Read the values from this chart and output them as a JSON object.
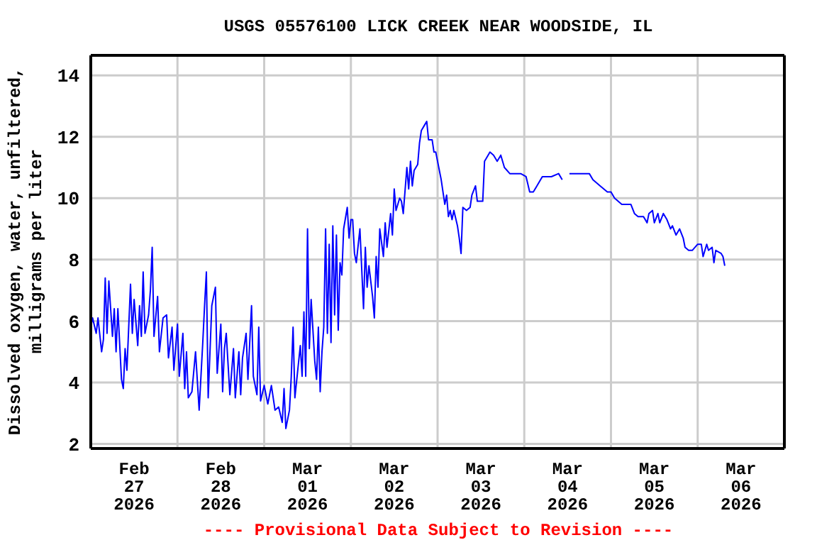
{
  "chart_data": {
    "type": "line",
    "title": "USGS 05576100 LICK CREEK NEAR WOODSIDE, IL",
    "ylabel": "Dissolved oxygen, water, unfiltered,\nmilligrams per liter",
    "annotations": [
      "---- Provisional Data Subject to Revision ----"
    ],
    "xlim": [
      "2026-02-26T12:00",
      "2026-03-06T12:00"
    ],
    "xticks": [
      {
        "value": "2026-02-27T00:00",
        "label": "Feb\n27\n2026"
      },
      {
        "value": "2026-02-27T12:00",
        "label": null
      },
      {
        "value": "2026-02-28T00:00",
        "label": "Feb\n28\n2026"
      },
      {
        "value": "2026-02-28T12:00",
        "label": null
      },
      {
        "value": "2026-03-01T00:00",
        "label": "Mar\n01\n2026"
      },
      {
        "value": "2026-03-01T12:00",
        "label": null
      },
      {
        "value": "2026-03-02T00:00",
        "label": "Mar\n02\n2026"
      },
      {
        "value": "2026-03-02T12:00",
        "label": null
      },
      {
        "value": "2026-03-03T00:00",
        "label": "Mar\n03\n2026"
      },
      {
        "value": "2026-03-03T12:00",
        "label": null
      },
      {
        "value": "2026-03-04T00:00",
        "label": "Mar\n04\n2026"
      },
      {
        "value": "2026-03-04T12:00",
        "label": null
      },
      {
        "value": "2026-03-05T00:00",
        "label": "Mar\n05\n2026"
      },
      {
        "value": "2026-03-05T12:00",
        "label": null
      },
      {
        "value": "2026-03-06T00:00",
        "label": "Mar\n06\n2026"
      }
    ],
    "ylim": [
      1.85,
      14.65
    ],
    "yticks": [
      2,
      4,
      6,
      8,
      10,
      12,
      14
    ],
    "grid": true,
    "marker": "none",
    "line_style": "solid",
    "series": [
      {
        "color": "#0000ff",
        "x": [
          "2026-02-26T12:00",
          "2026-02-26T12:30",
          "2026-02-26T13:30",
          "2026-02-26T14:00",
          "2026-02-26T15:00",
          "2026-02-26T15:30",
          "2026-02-26T16:00",
          "2026-02-26T16:30",
          "2026-02-26T17:00",
          "2026-02-26T18:00",
          "2026-02-26T18:30",
          "2026-02-26T19:00",
          "2026-02-26T19:30",
          "2026-02-26T20:30",
          "2026-02-26T21:00",
          "2026-02-26T21:30",
          "2026-02-26T22:00",
          "2026-02-26T23:00",
          "2026-02-26T23:30",
          "2026-02-27T00:00",
          "2026-02-27T01:00",
          "2026-02-27T01:30",
          "2026-02-27T02:00",
          "2026-02-27T02:30",
          "2026-02-27T03:00",
          "2026-02-27T04:00",
          "2026-02-27T04:30",
          "2026-02-27T05:00",
          "2026-02-27T05:30",
          "2026-02-27T06:30",
          "2026-02-27T07:00",
          "2026-02-27T08:00",
          "2026-02-27T09:00",
          "2026-02-27T09:30",
          "2026-02-27T10:30",
          "2026-02-27T11:00",
          "2026-02-27T12:00",
          "2026-02-27T12:30",
          "2026-02-27T13:30",
          "2026-02-27T14:00",
          "2026-02-27T14:30",
          "2026-02-27T15:00",
          "2026-02-27T16:00",
          "2026-02-27T17:00",
          "2026-02-27T18:00",
          "2026-02-27T19:00",
          "2026-02-27T19:30",
          "2026-02-27T20:00",
          "2026-02-27T20:30",
          "2026-02-27T21:30",
          "2026-02-27T22:30",
          "2026-02-27T23:00",
          "2026-02-28T00:00",
          "2026-02-28T00:30",
          "2026-02-28T01:00",
          "2026-02-28T01:30",
          "2026-02-28T02:30",
          "2026-02-28T03:30",
          "2026-02-28T04:00",
          "2026-02-28T05:00",
          "2026-02-28T05:30",
          "2026-02-28T06:00",
          "2026-02-28T07:00",
          "2026-02-28T07:30",
          "2026-02-28T08:30",
          "2026-02-28T09:00",
          "2026-02-28T10:00",
          "2026-02-28T10:30",
          "2026-02-28T11:00",
          "2026-02-28T12:00",
          "2026-02-28T13:00",
          "2026-02-28T14:00",
          "2026-02-28T15:00",
          "2026-02-28T16:00",
          "2026-02-28T17:00",
          "2026-02-28T17:30",
          "2026-02-28T18:00",
          "2026-02-28T19:00",
          "2026-02-28T19:30",
          "2026-02-28T20:00",
          "2026-02-28T20:30",
          "2026-02-28T22:00",
          "2026-02-28T22:30",
          "2026-02-28T23:00",
          "2026-02-28T23:30",
          "2026-03-01T00:00",
          "2026-03-01T00:30",
          "2026-03-01T01:00",
          "2026-03-01T02:00",
          "2026-03-01T02:30",
          "2026-03-01T03:00",
          "2026-03-01T03:30",
          "2026-03-01T04:00",
          "2026-03-01T04:30",
          "2026-03-01T05:00",
          "2026-03-01T05:30",
          "2026-03-01T06:00",
          "2026-03-01T06:30",
          "2026-03-01T07:00",
          "2026-03-01T07:30",
          "2026-03-01T08:00",
          "2026-03-01T08:30",
          "2026-03-01T09:00",
          "2026-03-01T09:30",
          "2026-03-01T10:00",
          "2026-03-01T11:00",
          "2026-03-01T11:30",
          "2026-03-01T12:00",
          "2026-03-01T12:30",
          "2026-03-01T13:00",
          "2026-03-01T13:30",
          "2026-03-01T14:30",
          "2026-03-01T15:30",
          "2026-03-01T16:00",
          "2026-03-01T16:30",
          "2026-03-01T17:00",
          "2026-03-01T18:00",
          "2026-03-01T18:30",
          "2026-03-01T19:00",
          "2026-03-01T19:30",
          "2026-03-01T20:00",
          "2026-03-01T21:00",
          "2026-03-01T21:30",
          "2026-03-01T22:00",
          "2026-03-01T23:00",
          "2026-03-01T23:30",
          "2026-03-02T00:00",
          "2026-03-02T00:30",
          "2026-03-02T01:30",
          "2026-03-02T02:00",
          "2026-03-02T02:30",
          "2026-03-02T03:30",
          "2026-03-02T04:00",
          "2026-03-02T04:30",
          "2026-03-02T05:00",
          "2026-03-02T05:30",
          "2026-03-02T06:30",
          "2026-03-02T07:00",
          "2026-03-02T07:30",
          "2026-03-02T08:30",
          "2026-03-02T09:00",
          "2026-03-02T09:30",
          "2026-03-02T10:30",
          "2026-03-02T11:00",
          "2026-03-02T11:30",
          "2026-03-02T12:00",
          "2026-03-02T13:00",
          "2026-03-02T13:30",
          "2026-03-02T14:00",
          "2026-03-02T14:30",
          "2026-03-02T15:00",
          "2026-03-02T15:30",
          "2026-03-02T16:00",
          "2026-03-02T16:30",
          "2026-03-02T17:30",
          "2026-03-02T18:00",
          "2026-03-02T18:30",
          "2026-03-02T19:00",
          "2026-03-02T20:00",
          "2026-03-02T21:00",
          "2026-03-02T21:30",
          "2026-03-02T22:30",
          "2026-03-02T23:00",
          "2026-03-03T00:00",
          "2026-03-03T00:30",
          "2026-03-03T01:00",
          "2026-03-03T01:30",
          "2026-03-03T02:30",
          "2026-03-03T03:30",
          "2026-03-03T04:30",
          "2026-03-03T05:30",
          "2026-03-03T06:30",
          "2026-03-03T08:00",
          "2026-03-03T09:00",
          "2026-03-03T11:00",
          "2026-03-03T12:30",
          "2026-03-03T13:30",
          "2026-03-03T14:30",
          "2026-03-03T15:30",
          "2026-03-03T17:00",
          "2026-03-03T19:30",
          "2026-03-03T21:30",
          "2026-03-03T22:30",
          "2026-03-03T23:30",
          "2026-03-04T00:30",
          "2026-03-04T02:00",
          "2026-03-04T06:00",
          "2026-03-04T07:00",
          "2026-03-04T09:00",
          "2026-03-04T11:00",
          "2026-03-04T12:00",
          "2026-03-04T13:00",
          "2026-03-04T15:00",
          "2026-03-04T17:30",
          "2026-03-04T18:30",
          "2026-03-04T19:30",
          "2026-03-04T21:00",
          "2026-03-04T22:00",
          "2026-03-04T22:30",
          "2026-03-04T23:30",
          "2026-03-05T00:00",
          "2026-03-05T01:00",
          "2026-03-05T01:30",
          "2026-03-05T02:30",
          "2026-03-05T03:30",
          "2026-03-05T04:30",
          "2026-03-05T05:00",
          "2026-03-05T06:00",
          "2026-03-05T07:00",
          "2026-03-05T08:00",
          "2026-03-05T08:30",
          "2026-03-05T09:30",
          "2026-03-05T10:30",
          "2026-03-05T12:00",
          "2026-03-05T13:00",
          "2026-03-05T13:30",
          "2026-03-05T14:30",
          "2026-03-05T15:00",
          "2026-03-05T16:00",
          "2026-03-05T16:30",
          "2026-03-05T17:00",
          "2026-03-05T18:30",
          "2026-03-05T19:00",
          "2026-03-05T19:30"
        ],
        "values": [
          5.8,
          6.1,
          5.6,
          6.1,
          5.0,
          5.4,
          7.4,
          5.6,
          7.3,
          5.5,
          6.4,
          5.0,
          6.4,
          4.1,
          3.8,
          5.1,
          4.4,
          7.2,
          5.6,
          6.7,
          5.2,
          6.5,
          5.5,
          7.6,
          5.6,
          6.2,
          7.0,
          8.4,
          5.5,
          6.8,
          5.0,
          6.1,
          6.2,
          4.8,
          5.8,
          4.4,
          5.9,
          4.2,
          5.6,
          3.8,
          5.0,
          3.5,
          3.7,
          5.0,
          3.1,
          5.3,
          6.5,
          7.6,
          3.5,
          6.5,
          7.1,
          4.3,
          5.9,
          3.7,
          5.1,
          5.6,
          3.6,
          5.1,
          3.5,
          5.0,
          3.6,
          4.8,
          5.6,
          4.1,
          6.5,
          4.2,
          3.6,
          5.8,
          3.4,
          3.9,
          3.3,
          3.9,
          3.1,
          3.2,
          2.7,
          3.8,
          2.5,
          3.1,
          4.2,
          5.8,
          3.5,
          5.2,
          4.2,
          6.3,
          4.2,
          9.0,
          5.1,
          6.7,
          4.7,
          4.1,
          5.8,
          3.7,
          5.0,
          5.8,
          9.0,
          5.6,
          8.5,
          5.3,
          9.1,
          6.2,
          8.8,
          5.7,
          7.9,
          7.5,
          9.0,
          9.7,
          8.7,
          9.3,
          9.3,
          8.2,
          7.9,
          9.0,
          6.4,
          8.4,
          7.1,
          7.8,
          6.8,
          6.1,
          8.1,
          7.1,
          9.0,
          8.1,
          9.2,
          8.4,
          9.5,
          8.8,
          10.3,
          9.6,
          10.0,
          9.9,
          9.5,
          11.0,
          10.3,
          11.2,
          10.4,
          10.9,
          11.1,
          11.8,
          12.2,
          12.4,
          12.5,
          11.9,
          11.9,
          11.5,
          11.5,
          11.2,
          10.6,
          10.2,
          9.8,
          10.1,
          9.4,
          9.6,
          9.3,
          9.6,
          9.1,
          8.7,
          8.2,
          9.7,
          9.6,
          9.7,
          10.1,
          10.4,
          9.9,
          9.9,
          9.9,
          11.2,
          11.3,
          11.5,
          11.4,
          11.2,
          11.4,
          11.0,
          10.8,
          10.8,
          10.8,
          10.7,
          10.2,
          10.2,
          10.4,
          10.7,
          10.7,
          10.8,
          10.6,
          null,
          10.8,
          10.8,
          10.8,
          10.6,
          10.4,
          10.2,
          10.2,
          10.0,
          9.8,
          9.8,
          9.5,
          9.4,
          9.4,
          9.2,
          9.5,
          9.6,
          9.2,
          9.5,
          9.2,
          9.5,
          9.3,
          9.0,
          9.1,
          8.8,
          9.0,
          8.7,
          8.4,
          8.3,
          8.3,
          8.5,
          8.5,
          8.1,
          8.5,
          8.3,
          8.4,
          7.9,
          8.3,
          8.2,
          8.1,
          7.8
        ]
      }
    ]
  }
}
